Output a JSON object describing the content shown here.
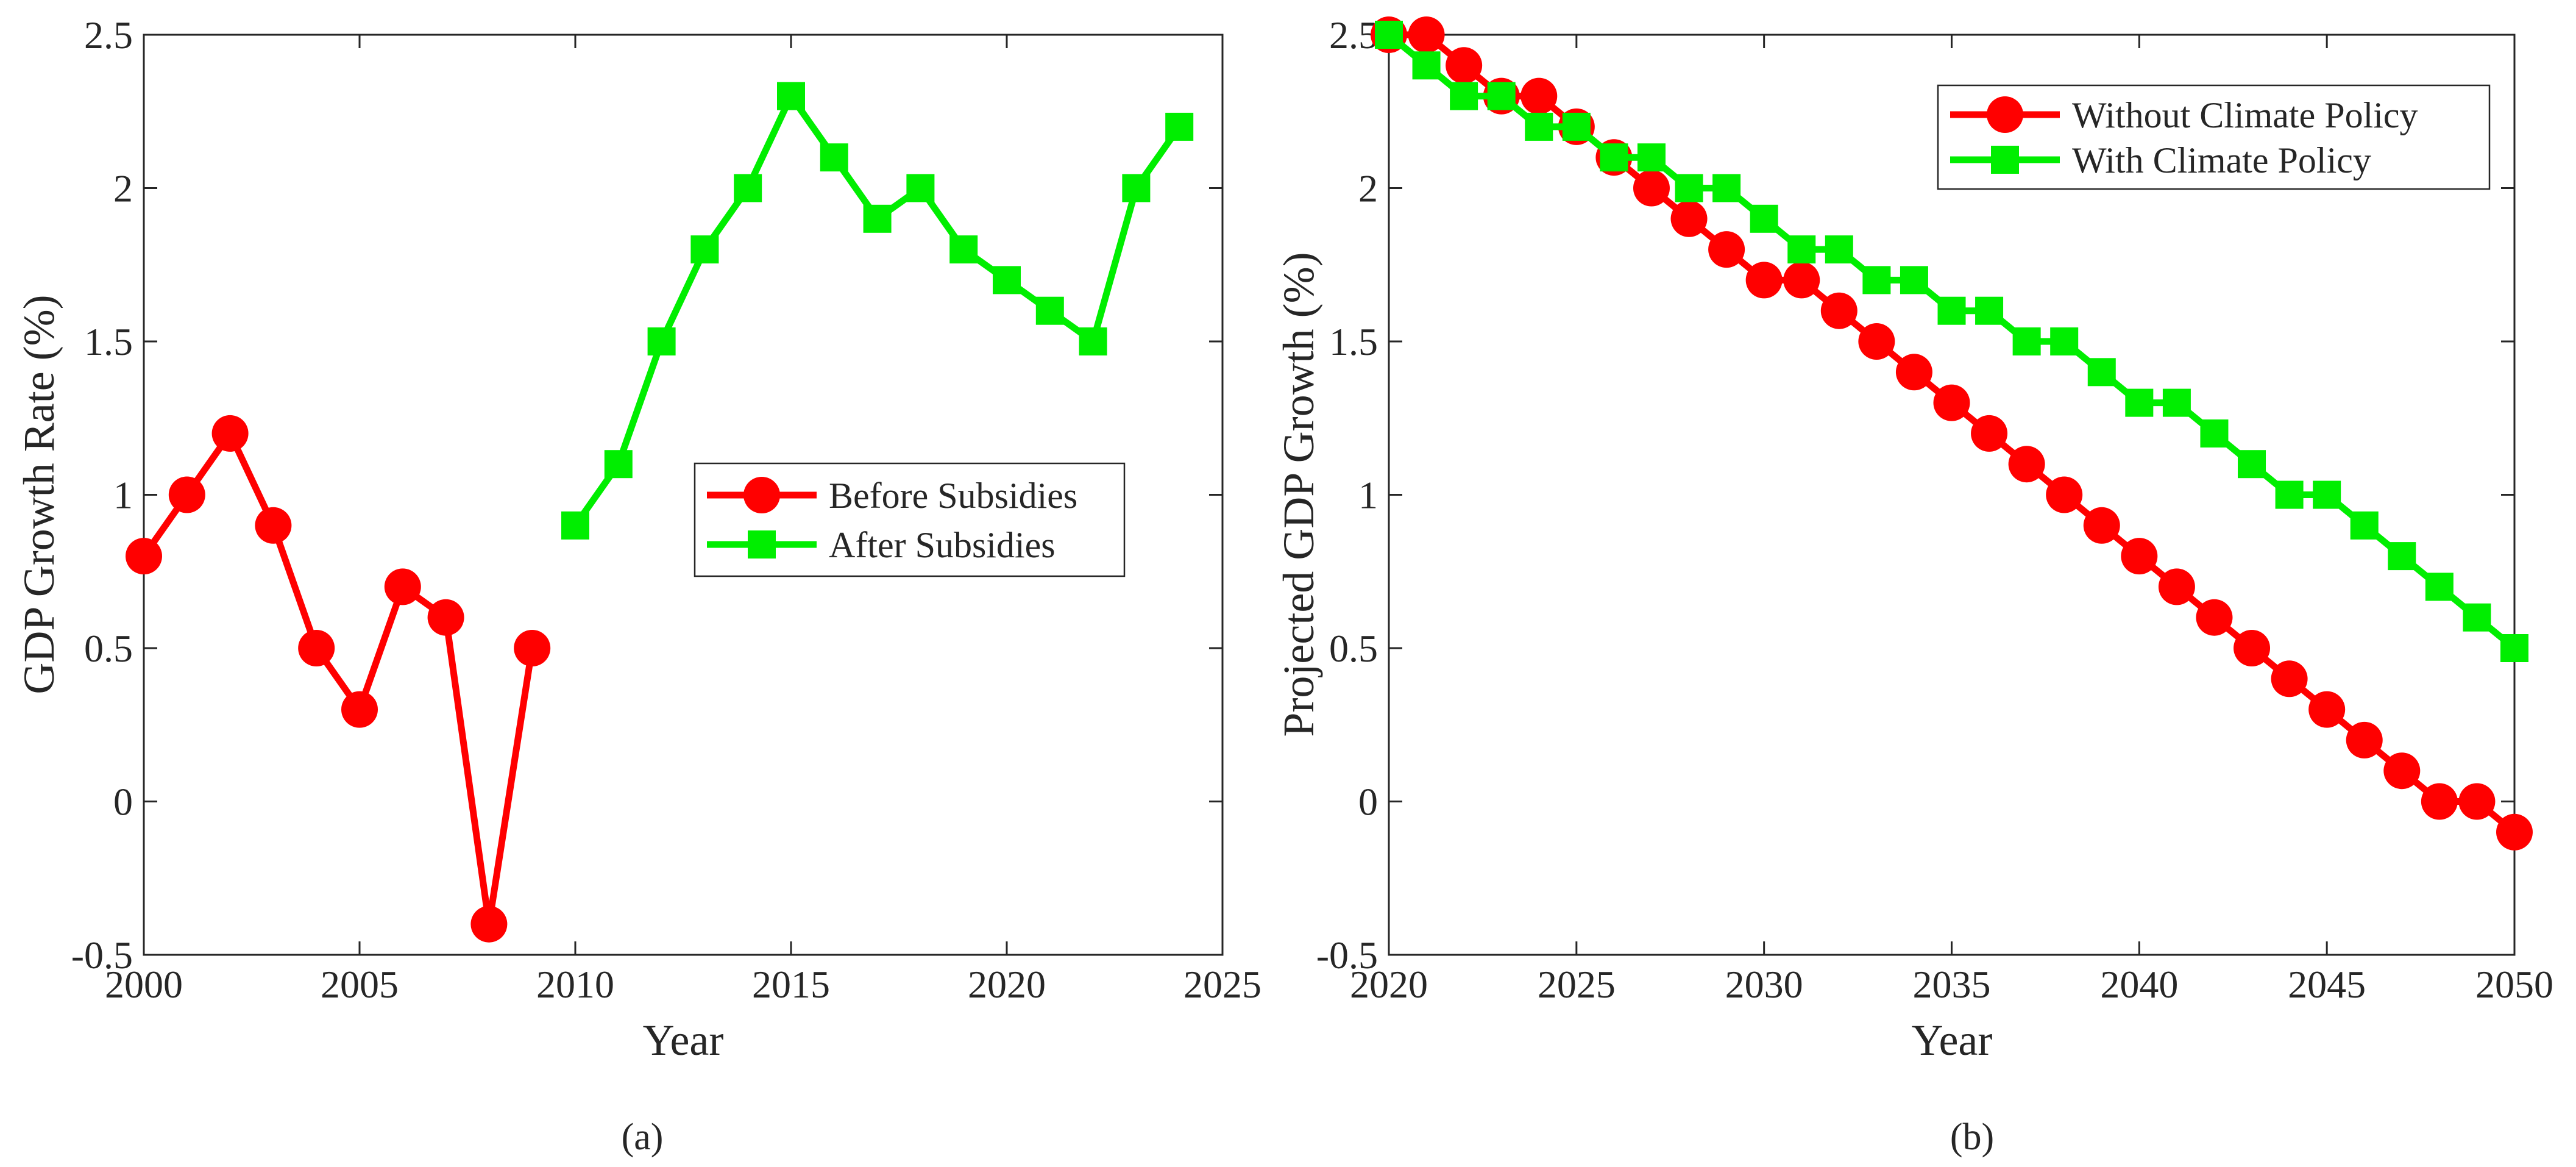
{
  "colors": {
    "red": "#ff0000",
    "green": "#00ee00",
    "axis": "#262626"
  },
  "chart_data": [
    {
      "type": "line",
      "panel_label": "(a)",
      "xlabel": "Year",
      "ylabel": "GDP Growth Rate (%)",
      "xlim": [
        2000,
        2025
      ],
      "ylim": [
        -0.5,
        2.5
      ],
      "xticks": [
        "2000",
        "2005",
        "2010",
        "2015",
        "2020",
        "2025"
      ],
      "yticks": [
        "-0.5",
        "0",
        "0.5",
        "1",
        "1.5",
        "2",
        "2.5"
      ],
      "legend_position": "center-right",
      "series": [
        {
          "name": "Before Subsidies",
          "color": "#ff0000",
          "marker": "circle",
          "x": [
            2000,
            2001,
            2002,
            2003,
            2004,
            2005,
            2006,
            2007,
            2008,
            2009
          ],
          "y": [
            0.8,
            1.0,
            1.2,
            0.9,
            0.5,
            0.3,
            0.7,
            0.6,
            -0.4,
            0.5
          ]
        },
        {
          "name": "After Subsidies",
          "color": "#00ee00",
          "marker": "square",
          "x": [
            2010,
            2011,
            2012,
            2013,
            2014,
            2015,
            2016,
            2017,
            2018,
            2019,
            2020,
            2021,
            2022,
            2023,
            2024
          ],
          "y": [
            0.9,
            1.1,
            1.5,
            1.8,
            2.0,
            2.3,
            2.1,
            1.9,
            2.0,
            1.8,
            1.7,
            1.6,
            1.5,
            2.0,
            2.2
          ]
        }
      ]
    },
    {
      "type": "line",
      "panel_label": "(b)",
      "xlabel": "Year",
      "ylabel": "Projected GDP Growth (%)",
      "xlim": [
        2020,
        2050
      ],
      "ylim": [
        -0.5,
        2.5
      ],
      "xticks": [
        "2020",
        "2025",
        "2030",
        "2035",
        "2040",
        "2045",
        "2050"
      ],
      "yticks": [
        "-0.5",
        "0",
        "0.5",
        "1",
        "1.5",
        "2",
        "2.5"
      ],
      "legend_position": "top-right",
      "series": [
        {
          "name": "Without Climate Policy",
          "color": "#ff0000",
          "marker": "circle",
          "x": [
            2020,
            2021,
            2022,
            2023,
            2024,
            2025,
            2026,
            2027,
            2028,
            2029,
            2030,
            2031,
            2032,
            2033,
            2034,
            2035,
            2036,
            2037,
            2038,
            2039,
            2040,
            2041,
            2042,
            2043,
            2044,
            2045,
            2046,
            2047,
            2048,
            2049,
            2050
          ],
          "y": [
            2.5,
            2.5,
            2.4,
            2.3,
            2.3,
            2.2,
            2.1,
            2.0,
            1.9,
            1.8,
            1.7,
            1.7,
            1.6,
            1.5,
            1.4,
            1.3,
            1.2,
            1.1,
            1.0,
            0.9,
            0.8,
            0.7,
            0.6,
            0.5,
            0.4,
            0.3,
            0.2,
            0.1,
            0.0,
            0.0,
            -0.1
          ]
        },
        {
          "name": "With Climate Policy",
          "color": "#00ee00",
          "marker": "square",
          "x": [
            2020,
            2021,
            2022,
            2023,
            2024,
            2025,
            2026,
            2027,
            2028,
            2029,
            2030,
            2031,
            2032,
            2033,
            2034,
            2035,
            2036,
            2037,
            2038,
            2039,
            2040,
            2041,
            2042,
            2043,
            2044,
            2045,
            2046,
            2047,
            2048,
            2049,
            2050
          ],
          "y": [
            2.5,
            2.4,
            2.3,
            2.3,
            2.2,
            2.2,
            2.1,
            2.1,
            2.0,
            2.0,
            1.9,
            1.8,
            1.8,
            1.7,
            1.7,
            1.6,
            1.6,
            1.5,
            1.5,
            1.4,
            1.3,
            1.3,
            1.2,
            1.1,
            1.0,
            1.0,
            0.9,
            0.8,
            0.7,
            0.6,
            0.5
          ]
        }
      ]
    }
  ]
}
